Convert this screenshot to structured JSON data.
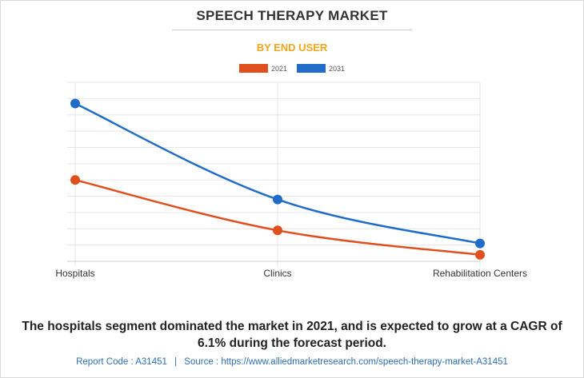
{
  "chart_data": {
    "type": "line",
    "title": "SPEECH THERAPY MARKET",
    "subtitle": "BY END USER",
    "categories": [
      "Hospitals",
      "Clinics",
      "Rehabilitation Centers"
    ],
    "series": [
      {
        "name": "2021",
        "color": "#e0501f",
        "values": [
          0.5,
          0.19,
          0.04
        ]
      },
      {
        "name": "2031",
        "color": "#1f6dc8",
        "values": [
          0.97,
          0.38,
          0.11
        ]
      }
    ],
    "ylim": [
      0,
      1.1
    ],
    "y_gridlines": 11,
    "grid": true,
    "legend_position": "top-center",
    "y_axis_labels_visible": false
  },
  "caption": "The hospitals segment dominated the market in 2021, and is expected to grow at a CAGR of 6.1% during the forecast period.",
  "footer": {
    "report_code": "Report Code : A31451",
    "separator": "|",
    "source": "Source : https://www.alliedmarketresearch.com/speech-therapy-market-A31451"
  }
}
